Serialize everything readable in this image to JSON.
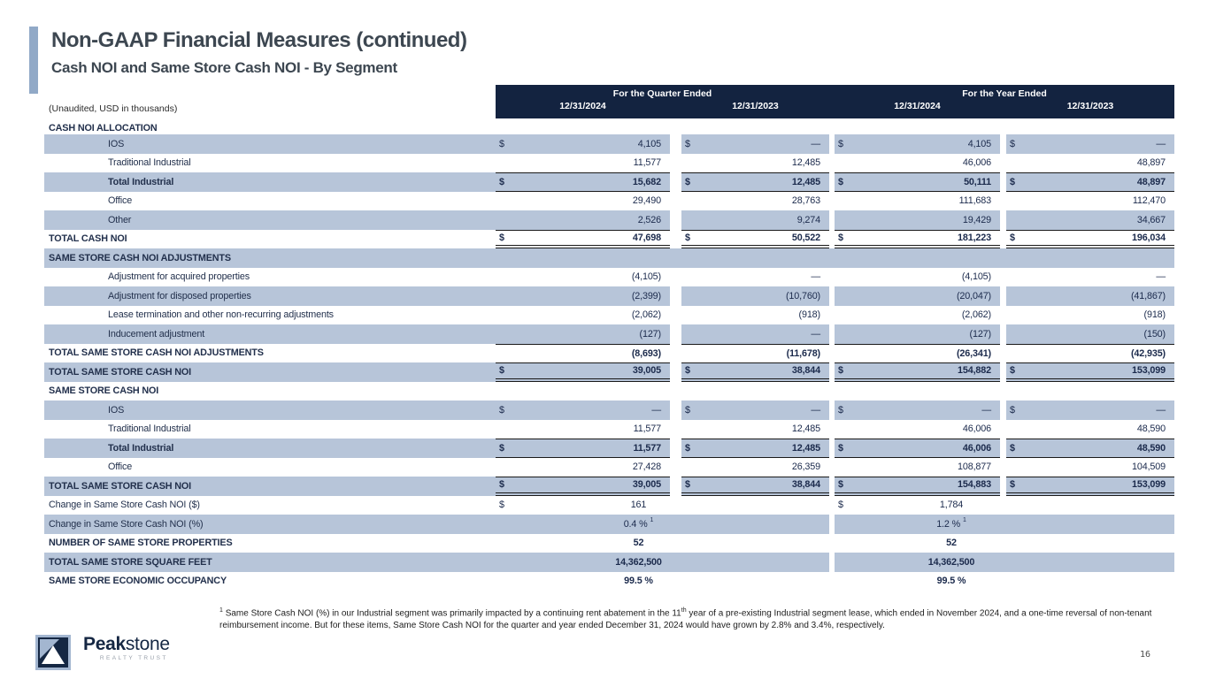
{
  "slide": {
    "title": "Non-GAAP Financial Measures (continued)",
    "subtitle": "Cash NOI and Same Store Cash NOI - By Segment",
    "units_note": "(Unaudited, USD in thousands)",
    "page_number": "16"
  },
  "colors": {
    "header_navy": "#132340",
    "stripe_blue": "#b7c5d9",
    "accent_bar": "#91a9c7",
    "brand_navy": "#152743"
  },
  "table": {
    "header": {
      "quarter_group": "For the Quarter Ended",
      "year_group": "For the Year Ended",
      "columns": [
        "12/31/2024",
        "12/31/2023",
        "12/31/2024",
        "12/31/2023"
      ]
    },
    "rows": [
      {
        "label": "CASH NOI ALLOCATION",
        "type": "section",
        "bg": "white",
        "bold": true,
        "short": true,
        "span": true
      },
      {
        "label": "IOS",
        "indent": 1,
        "bg": "blue",
        "cells": [
          {
            "d": "$",
            "v": "4,105"
          },
          {
            "d": "$",
            "v": "—"
          },
          {
            "d": "$",
            "v": "4,105"
          },
          {
            "d": "$",
            "v": "—"
          }
        ]
      },
      {
        "label": "Traditional Industrial",
        "indent": 1,
        "bg": "white",
        "cells": [
          {
            "v": "11,577"
          },
          {
            "v": "12,485"
          },
          {
            "v": "46,006"
          },
          {
            "v": "48,897"
          }
        ]
      },
      {
        "label": "Total Industrial",
        "indent": 1,
        "bg": "blue",
        "bold": true,
        "border": "tb",
        "cells": [
          {
            "d": "$",
            "v": "15,682"
          },
          {
            "d": "$",
            "v": "12,485"
          },
          {
            "d": "$",
            "v": "50,111"
          },
          {
            "d": "$",
            "v": "48,897"
          }
        ]
      },
      {
        "label": "Office",
        "indent": 1,
        "bg": "white",
        "cells": [
          {
            "v": "29,490"
          },
          {
            "v": "28,763"
          },
          {
            "v": "111,683"
          },
          {
            "v": "112,470"
          }
        ]
      },
      {
        "label": "Other",
        "indent": 1,
        "bg": "blue",
        "cells": [
          {
            "v": "2,526"
          },
          {
            "v": "9,274"
          },
          {
            "v": "19,429"
          },
          {
            "v": "34,667"
          }
        ]
      },
      {
        "label": "TOTAL CASH NOI",
        "bg": "white",
        "bold": true,
        "border": "tb2",
        "cells": [
          {
            "d": "$",
            "v": "47,698"
          },
          {
            "d": "$",
            "v": "50,522"
          },
          {
            "d": "$",
            "v": "181,223"
          },
          {
            "d": "$",
            "v": "196,034"
          }
        ]
      },
      {
        "label": "SAME STORE CASH NOI ADJUSTMENTS",
        "type": "section",
        "bg": "blue",
        "bold": true,
        "span": true
      },
      {
        "label": "Adjustment for acquired properties",
        "indent": 1,
        "bg": "white",
        "cells": [
          {
            "v": "(4,105)"
          },
          {
            "v": "—"
          },
          {
            "v": "(4,105)"
          },
          {
            "v": "—"
          }
        ]
      },
      {
        "label": "Adjustment for disposed properties",
        "indent": 1,
        "bg": "blue",
        "cells": [
          {
            "v": "(2,399)"
          },
          {
            "v": "(10,760)"
          },
          {
            "v": "(20,047)"
          },
          {
            "v": "(41,867)"
          }
        ]
      },
      {
        "label": "Lease termination and other non-recurring adjustments",
        "indent": 1,
        "bg": "white",
        "cells": [
          {
            "v": "(2,062)"
          },
          {
            "v": "(918)"
          },
          {
            "v": "(2,062)"
          },
          {
            "v": "(918)"
          }
        ]
      },
      {
        "label": "Inducement adjustment",
        "indent": 1,
        "bg": "blue",
        "cells": [
          {
            "v": "(127)"
          },
          {
            "v": "—"
          },
          {
            "v": "(127)"
          },
          {
            "v": "(150)"
          }
        ]
      },
      {
        "label": "TOTAL SAME STORE CASH NOI ADJUSTMENTS",
        "bg": "white",
        "bold": true,
        "border": "t",
        "cells": [
          {
            "v": "(8,693)"
          },
          {
            "v": "(11,678)"
          },
          {
            "v": "(26,341)"
          },
          {
            "v": "(42,935)"
          }
        ]
      },
      {
        "label": "TOTAL SAME STORE CASH NOI",
        "bg": "blue",
        "bold": true,
        "border": "tb2",
        "cells": [
          {
            "d": "$",
            "v": "39,005"
          },
          {
            "d": "$",
            "v": "38,844"
          },
          {
            "d": "$",
            "v": "154,882"
          },
          {
            "d": "$",
            "v": "153,099"
          }
        ]
      },
      {
        "label": "SAME STORE CASH NOI",
        "type": "section",
        "bg": "white",
        "bold": true,
        "span": true
      },
      {
        "label": "IOS",
        "indent": 1,
        "bg": "blue",
        "cells": [
          {
            "d": "$",
            "v": "—"
          },
          {
            "d": "$",
            "v": "—"
          },
          {
            "d": "$",
            "v": "—"
          },
          {
            "d": "$",
            "v": "—"
          }
        ]
      },
      {
        "label": "Traditional Industrial",
        "indent": 1,
        "bg": "white",
        "cells": [
          {
            "v": "11,577"
          },
          {
            "v": "12,485"
          },
          {
            "v": "46,006"
          },
          {
            "v": "48,590"
          }
        ]
      },
      {
        "label": "Total Industrial",
        "indent": 1,
        "bg": "blue",
        "bold": true,
        "border": "tb",
        "cells": [
          {
            "d": "$",
            "v": "11,577"
          },
          {
            "d": "$",
            "v": "12,485"
          },
          {
            "d": "$",
            "v": "46,006"
          },
          {
            "d": "$",
            "v": "48,590"
          }
        ]
      },
      {
        "label": "Office",
        "indent": 1,
        "bg": "white",
        "cells": [
          {
            "v": "27,428"
          },
          {
            "v": "26,359"
          },
          {
            "v": "108,877"
          },
          {
            "v": "104,509"
          }
        ]
      },
      {
        "label": "TOTAL SAME STORE CASH NOI",
        "bg": "blue",
        "bold": true,
        "border": "tb2",
        "cells": [
          {
            "d": "$",
            "v": "39,005"
          },
          {
            "d": "$",
            "v": "38,844"
          },
          {
            "d": "$",
            "v": "154,883"
          },
          {
            "d": "$",
            "v": "153,099"
          }
        ]
      },
      {
        "label": "Change in Same Store Cash NOI ($)",
        "bg": "white",
        "pairs": [
          {
            "d": "$",
            "v": "161"
          },
          {
            "d": "$",
            "v": "1,784"
          }
        ]
      },
      {
        "label": "Change in Same Store Cash NOI (%)",
        "bg": "blue",
        "pairs": [
          {
            "v": "0.4 %",
            "sup": "1"
          },
          {
            "v": "1.2 %",
            "sup": "1"
          }
        ]
      },
      {
        "label": "NUMBER OF SAME STORE PROPERTIES",
        "bg": "white",
        "bold": true,
        "pairs": [
          {
            "v": "52"
          },
          {
            "v": "52"
          }
        ]
      },
      {
        "label": "TOTAL SAME STORE SQUARE FEET",
        "bg": "blue",
        "bold": true,
        "pairs": [
          {
            "v": "14,362,500"
          },
          {
            "v": "14,362,500"
          }
        ]
      },
      {
        "label": "SAME STORE ECONOMIC OCCUPANCY",
        "bg": "white",
        "bold": true,
        "pairs": [
          {
            "v": "99.5 %"
          },
          {
            "v": "99.5 %"
          }
        ]
      }
    ]
  },
  "footnote": {
    "marker": "1",
    "part1": "Same Store Cash NOI (%) in our Industrial segment was primarily impacted by a continuing rent abatement in the 11",
    "sup": "th",
    "part2": " year of a pre-existing Industrial segment lease, which ended in November 2024, and a one-time reversal of non-tenant reimbursement income. But for these items, Same Store Cash NOI for the quarter and year ended December 31, 2024 would have grown by 2.8% and 3.4%, respectively."
  },
  "logo": {
    "brand_bold": "Peak",
    "brand_light": "stone",
    "tagline": "REALTY TRUST"
  }
}
